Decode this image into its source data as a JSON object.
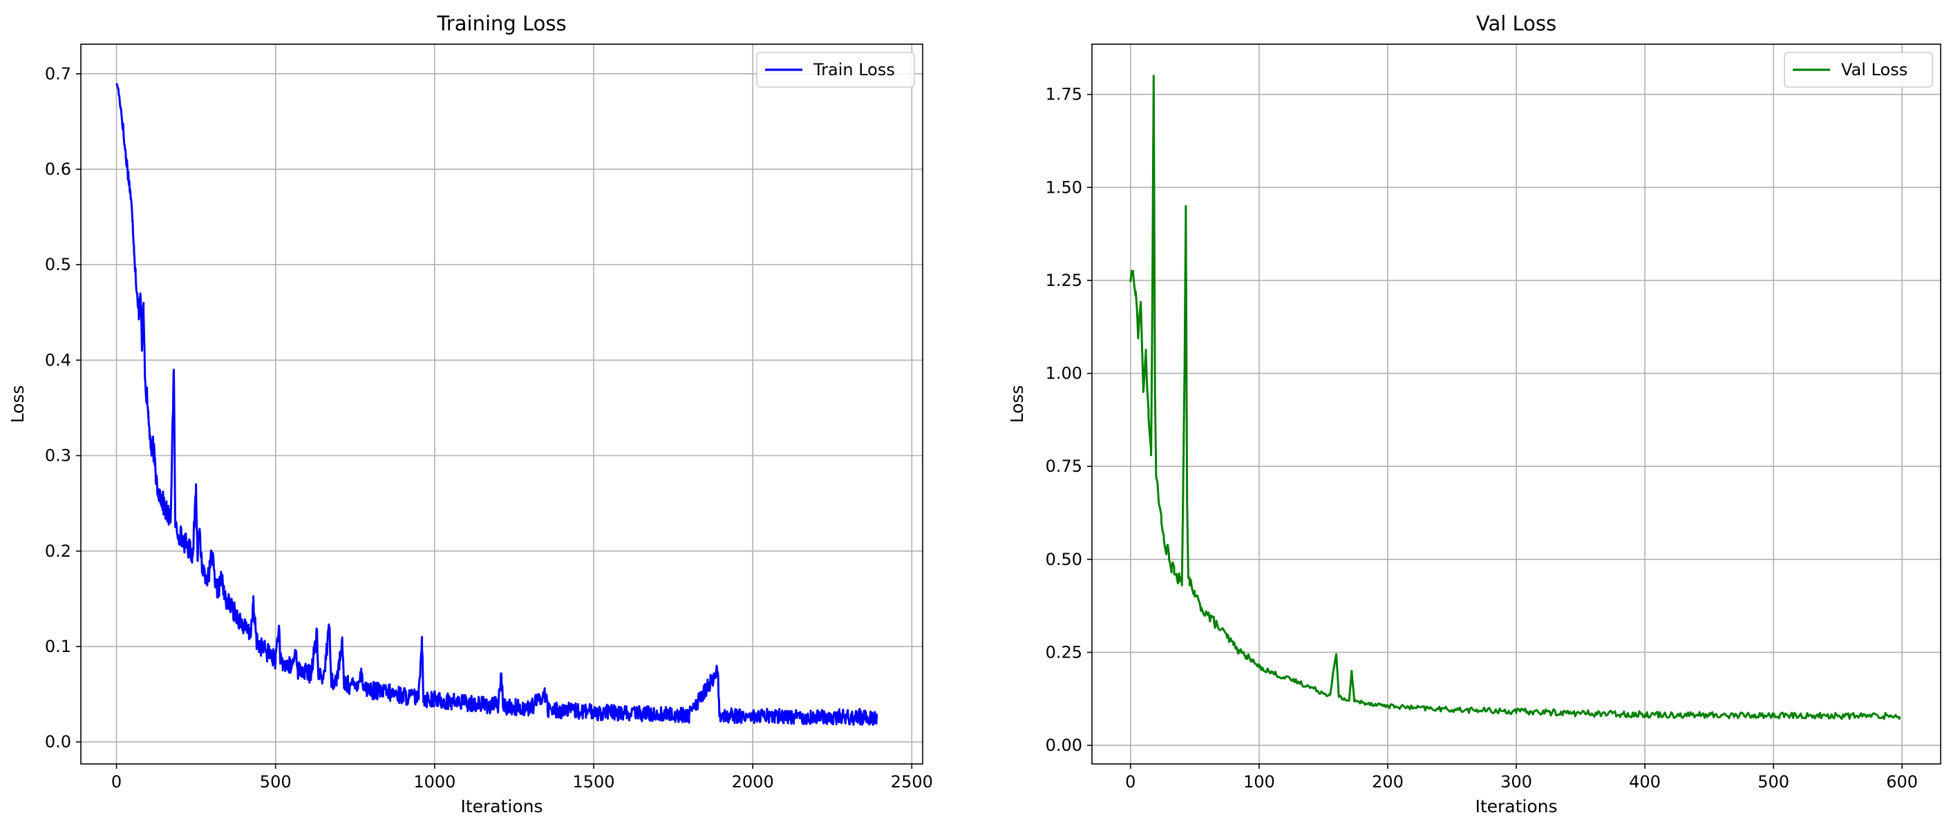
{
  "figure": {
    "background": "#ffffff",
    "grid_color": "#b0b0b0",
    "axes_color": "#000000"
  },
  "chart_data": [
    {
      "type": "line",
      "title": "Training Loss",
      "xlabel": "Iterations",
      "ylabel": "Loss",
      "xlim": [
        -112,
        2534
      ],
      "ylim": [
        -0.023,
        0.731
      ],
      "xticks": [
        0,
        500,
        1000,
        1500,
        2000,
        2500
      ],
      "xtick_labels": [
        "0",
        "500",
        "1000",
        "1500",
        "2000",
        "2500"
      ],
      "yticks": [
        0.0,
        0.1,
        0.2,
        0.3,
        0.4,
        0.5,
        0.6,
        0.7
      ],
      "ytick_labels": [
        "0.0",
        "0.1",
        "0.2",
        "0.3",
        "0.4",
        "0.5",
        "0.6",
        "0.7"
      ],
      "grid": true,
      "legend_position": "top-right",
      "series": [
        {
          "name": "Train Loss",
          "color": "#0000ff",
          "points": [
            [
              0,
              0.69
            ],
            [
              5,
              0.685
            ],
            [
              10,
              0.672
            ],
            [
              15,
              0.66
            ],
            [
              20,
              0.645
            ],
            [
              25,
              0.625
            ],
            [
              30,
              0.612
            ],
            [
              35,
              0.598
            ],
            [
              40,
              0.585
            ],
            [
              45,
              0.57
            ],
            [
              50,
              0.545
            ],
            [
              55,
              0.52
            ],
            [
              60,
              0.49
            ],
            [
              65,
              0.47
            ],
            [
              70,
              0.45
            ],
            [
              75,
              0.47
            ],
            [
              80,
              0.41
            ],
            [
              85,
              0.46
            ],
            [
              90,
              0.38
            ],
            [
              95,
              0.36
            ],
            [
              100,
              0.34
            ],
            [
              105,
              0.32
            ],
            [
              110,
              0.3
            ],
            [
              115,
              0.31
            ],
            [
              120,
              0.29
            ],
            [
              125,
              0.275
            ],
            [
              130,
              0.265
            ],
            [
              135,
              0.26
            ],
            [
              140,
              0.255
            ],
            [
              150,
              0.245
            ],
            [
              160,
              0.238
            ],
            [
              170,
              0.23
            ],
            [
              180,
              0.39
            ],
            [
              185,
              0.225
            ],
            [
              190,
              0.22
            ],
            [
              200,
              0.215
            ],
            [
              210,
              0.21
            ],
            [
              220,
              0.205
            ],
            [
              230,
              0.2
            ],
            [
              240,
              0.195
            ],
            [
              250,
              0.27
            ],
            [
              255,
              0.19
            ],
            [
              260,
              0.22
            ],
            [
              270,
              0.18
            ],
            [
              280,
              0.175
            ],
            [
              290,
              0.17
            ],
            [
              300,
              0.198
            ],
            [
              310,
              0.162
            ],
            [
              320,
              0.158
            ],
            [
              330,
              0.17
            ],
            [
              340,
              0.15
            ],
            [
              350,
              0.145
            ],
            [
              360,
              0.14
            ],
            [
              370,
              0.135
            ],
            [
              380,
              0.13
            ],
            [
              390,
              0.125
            ],
            [
              400,
              0.12
            ],
            [
              410,
              0.115
            ],
            [
              420,
              0.11
            ],
            [
              430,
              0.142
            ],
            [
              440,
              0.105
            ],
            [
              450,
              0.1
            ],
            [
              460,
              0.097
            ],
            [
              470,
              0.094
            ],
            [
              480,
              0.091
            ],
            [
              490,
              0.088
            ],
            [
              500,
              0.085
            ],
            [
              510,
              0.12
            ],
            [
              515,
              0.082
            ],
            [
              530,
              0.08
            ],
            [
              550,
              0.077
            ],
            [
              565,
              0.095
            ],
            [
              570,
              0.074
            ],
            [
              590,
              0.072
            ],
            [
              610,
              0.07
            ],
            [
              630,
              0.11
            ],
            [
              635,
              0.068
            ],
            [
              650,
              0.066
            ],
            [
              670,
              0.12
            ],
            [
              675,
              0.064
            ],
            [
              690,
              0.062
            ],
            [
              710,
              0.1
            ],
            [
              715,
              0.06
            ],
            [
              730,
              0.058
            ],
            [
              750,
              0.057
            ],
            [
              770,
              0.07
            ],
            [
              780,
              0.055
            ],
            [
              800,
              0.053
            ],
            [
              830,
              0.051
            ],
            [
              860,
              0.05
            ],
            [
              890,
              0.048
            ],
            [
              920,
              0.046
            ],
            [
              950,
              0.045
            ],
            [
              960,
              0.11
            ],
            [
              965,
              0.044
            ],
            [
              1000,
              0.043
            ],
            [
              1050,
              0.041
            ],
            [
              1100,
              0.04
            ],
            [
              1150,
              0.038
            ],
            [
              1200,
              0.037
            ],
            [
              1210,
              0.07
            ],
            [
              1215,
              0.036
            ],
            [
              1300,
              0.034
            ],
            [
              1350,
              0.05
            ],
            [
              1355,
              0.033
            ],
            [
              1400,
              0.032
            ],
            [
              1500,
              0.03
            ],
            [
              1600,
              0.029
            ],
            [
              1700,
              0.028
            ],
            [
              1800,
              0.027
            ],
            [
              1890,
              0.073
            ],
            [
              1895,
              0.027
            ],
            [
              2000,
              0.026
            ],
            [
              2100,
              0.026
            ],
            [
              2200,
              0.025
            ],
            [
              2300,
              0.025
            ],
            [
              2390,
              0.025
            ]
          ],
          "noise_envelope": [
            [
              0,
              0.0
            ],
            [
              20,
              0.01
            ],
            [
              100,
              0.018
            ],
            [
              300,
              0.015
            ],
            [
              600,
              0.014
            ],
            [
              1000,
              0.013
            ],
            [
              1500,
              0.012
            ],
            [
              2000,
              0.011
            ],
            [
              2390,
              0.012
            ]
          ]
        }
      ]
    },
    {
      "type": "line",
      "title": "Val Loss",
      "xlabel": "Iterations",
      "ylabel": "Loss",
      "xlim": [
        -30,
        630
      ],
      "ylim": [
        -0.05,
        1.885
      ],
      "xticks": [
        0,
        100,
        200,
        300,
        400,
        500,
        600
      ],
      "xtick_labels": [
        "0",
        "100",
        "200",
        "300",
        "400",
        "500",
        "600"
      ],
      "yticks": [
        0.0,
        0.25,
        0.5,
        0.75,
        1.0,
        1.25,
        1.5,
        1.75
      ],
      "ytick_labels": [
        "0.00",
        "0.25",
        "0.50",
        "0.75",
        "1.00",
        "1.25",
        "1.50",
        "1.75"
      ],
      "grid": true,
      "legend_position": "top-right",
      "series": [
        {
          "name": "Val Loss",
          "color": "#008000",
          "points": [
            [
              0,
              1.25
            ],
            [
              2,
              1.27
            ],
            [
              4,
              1.22
            ],
            [
              6,
              1.1
            ],
            [
              8,
              1.19
            ],
            [
              10,
              0.95
            ],
            [
              12,
              1.05
            ],
            [
              14,
              0.88
            ],
            [
              16,
              0.78
            ],
            [
              17,
              1.2
            ],
            [
              18,
              1.8
            ],
            [
              19,
              0.95
            ],
            [
              20,
              0.72
            ],
            [
              22,
              0.65
            ],
            [
              24,
              0.6
            ],
            [
              26,
              0.55
            ],
            [
              28,
              0.53
            ],
            [
              30,
              0.5
            ],
            [
              32,
              0.48
            ],
            [
              34,
              0.46
            ],
            [
              36,
              0.45
            ],
            [
              38,
              0.44
            ],
            [
              40,
              0.43
            ],
            [
              42,
              1.0
            ],
            [
              43,
              1.45
            ],
            [
              44,
              0.65
            ],
            [
              45,
              0.45
            ],
            [
              46,
              0.43
            ],
            [
              48,
              0.42
            ],
            [
              50,
              0.4
            ],
            [
              55,
              0.37
            ],
            [
              60,
              0.35
            ],
            [
              65,
              0.33
            ],
            [
              70,
              0.31
            ],
            [
              75,
              0.29
            ],
            [
              80,
              0.27
            ],
            [
              85,
              0.25
            ],
            [
              90,
              0.24
            ],
            [
              95,
              0.225
            ],
            [
              100,
              0.21
            ],
            [
              110,
              0.195
            ],
            [
              120,
              0.18
            ],
            [
              130,
              0.17
            ],
            [
              140,
              0.155
            ],
            [
              150,
              0.14
            ],
            [
              155,
              0.135
            ],
            [
              160,
              0.245
            ],
            [
              162,
              0.13
            ],
            [
              165,
              0.125
            ],
            [
              170,
              0.12
            ],
            [
              172,
              0.2
            ],
            [
              174,
              0.118
            ],
            [
              180,
              0.115
            ],
            [
              190,
              0.11
            ],
            [
              200,
              0.105
            ],
            [
              220,
              0.1
            ],
            [
              250,
              0.095
            ],
            [
              300,
              0.09
            ],
            [
              350,
              0.085
            ],
            [
              400,
              0.082
            ],
            [
              450,
              0.08
            ],
            [
              500,
              0.079
            ],
            [
              550,
              0.078
            ],
            [
              598,
              0.078
            ]
          ],
          "noise_envelope": [
            [
              0,
              0.02
            ],
            [
              30,
              0.03
            ],
            [
              100,
              0.01
            ],
            [
              200,
              0.008
            ],
            [
              300,
              0.012
            ],
            [
              400,
              0.012
            ],
            [
              598,
              0.012
            ]
          ]
        }
      ]
    }
  ]
}
